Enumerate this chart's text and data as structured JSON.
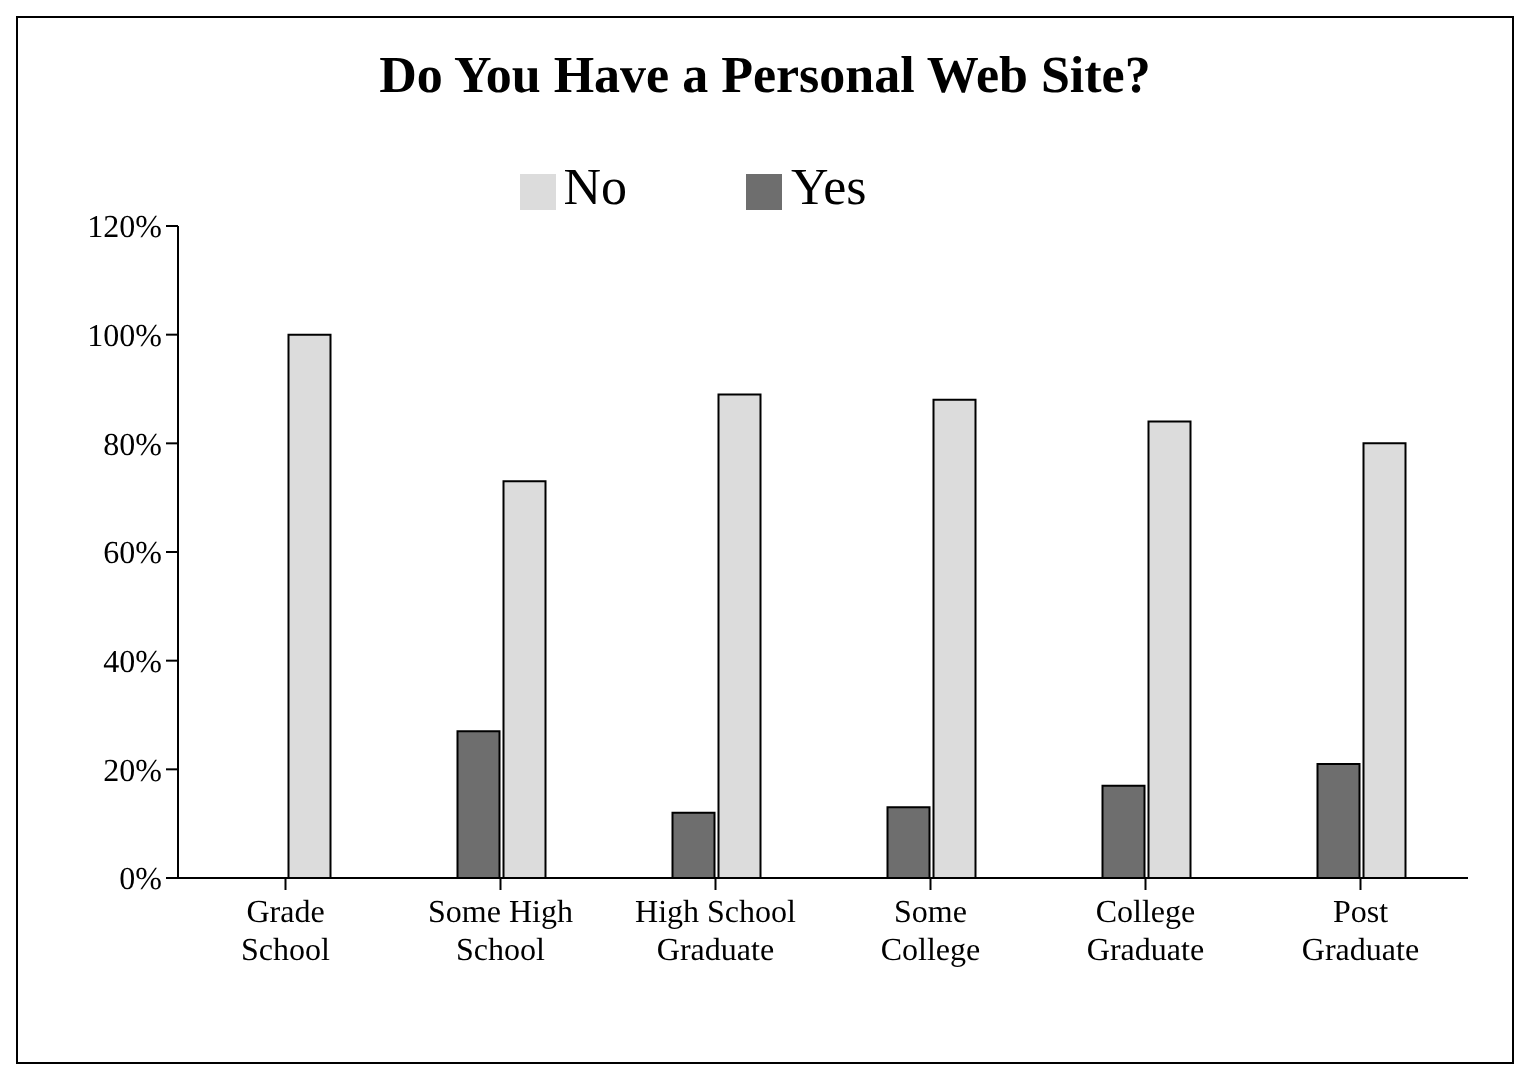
{
  "chart_data": {
    "type": "bar",
    "title": "Do You Have a Personal Web Site?",
    "categories": [
      "Grade School",
      "Some High School",
      "High School Graduate",
      "Some College",
      "College Graduate",
      "Post Graduate"
    ],
    "series": [
      {
        "name": "Yes",
        "color": "#6e6e6e",
        "values": [
          0,
          27,
          12,
          13,
          17,
          21
        ]
      },
      {
        "name": "No",
        "color": "#dcdcdc",
        "values": [
          100,
          73,
          89,
          88,
          84,
          80
        ]
      }
    ],
    "ylim": [
      0,
      120
    ],
    "yticks": [
      {
        "value": 0,
        "label": "0%"
      },
      {
        "value": 20,
        "label": "20%"
      },
      {
        "value": 40,
        "label": "40%"
      },
      {
        "value": 60,
        "label": "60%"
      },
      {
        "value": 80,
        "label": "80%"
      },
      {
        "value": 100,
        "label": "100%"
      },
      {
        "value": 120,
        "label": "120%"
      }
    ],
    "grid": false,
    "legend": "top"
  }
}
